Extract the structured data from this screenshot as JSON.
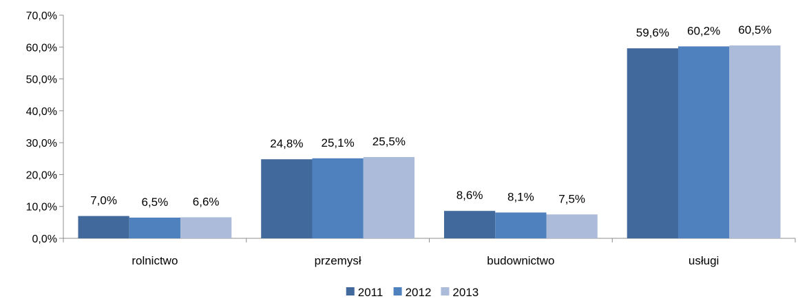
{
  "chart_data": {
    "type": "bar",
    "title": "",
    "xlabel": "",
    "ylabel": "",
    "categories": [
      "rolnictwo",
      "przemysł",
      "budownictwo",
      "usługi"
    ],
    "series": [
      {
        "name": "2011",
        "color": "#41699c",
        "values": [
          7.0,
          24.8,
          8.6,
          59.6
        ],
        "labels": [
          "7,0%",
          "24,8%",
          "8,6%",
          "59,6%"
        ]
      },
      {
        "name": "2012",
        "color": "#4e81bd",
        "values": [
          6.5,
          25.1,
          8.1,
          60.2
        ],
        "labels": [
          "6,5%",
          "25,1%",
          "8,1%",
          "60,2%"
        ]
      },
      {
        "name": "2013",
        "color": "#abbbd9",
        "values": [
          6.6,
          25.5,
          7.5,
          60.5
        ],
        "labels": [
          "6,6%",
          "25,5%",
          "7,5%",
          "60,5%"
        ]
      }
    ],
    "ylim": [
      0,
      70
    ],
    "yticks": [
      0,
      10,
      20,
      30,
      40,
      50,
      60,
      70
    ],
    "ytick_labels": [
      "0,0%",
      "10,0%",
      "20,0%",
      "30,0%",
      "40,0%",
      "50,0%",
      "60,0%",
      "70,0%"
    ],
    "grid": false,
    "legend": "bottom-center"
  }
}
